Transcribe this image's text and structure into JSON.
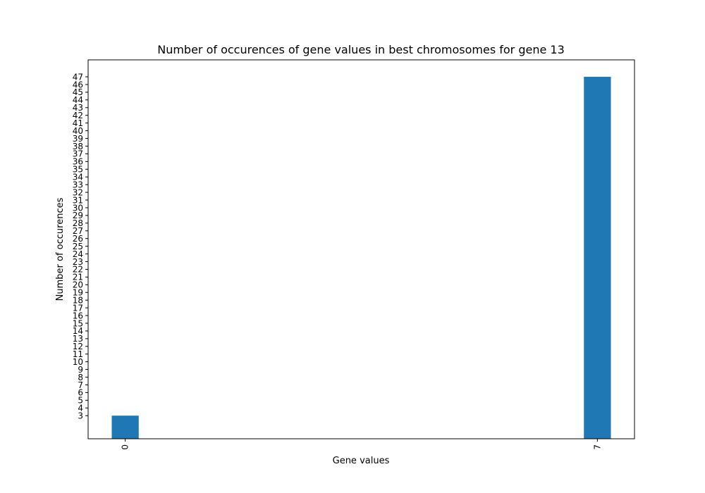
{
  "chart_data": {
    "type": "bar",
    "title": "Number of occurences of gene values in best chromosomes for gene 13",
    "xlabel": "Gene values",
    "ylabel": "Number of occurences",
    "categories": [
      "0",
      "7"
    ],
    "values": [
      3,
      47
    ],
    "ylim": [
      0,
      49.2
    ],
    "yticks": [
      3,
      4,
      5,
      6,
      7,
      8,
      9,
      10,
      11,
      12,
      13,
      14,
      15,
      16,
      17,
      18,
      19,
      20,
      21,
      22,
      23,
      24,
      25,
      26,
      27,
      28,
      29,
      30,
      31,
      32,
      33,
      34,
      35,
      36,
      37,
      38,
      39,
      40,
      41,
      42,
      43,
      44,
      45,
      46,
      47
    ],
    "grid": false,
    "bar_color": "#1f77b4"
  }
}
